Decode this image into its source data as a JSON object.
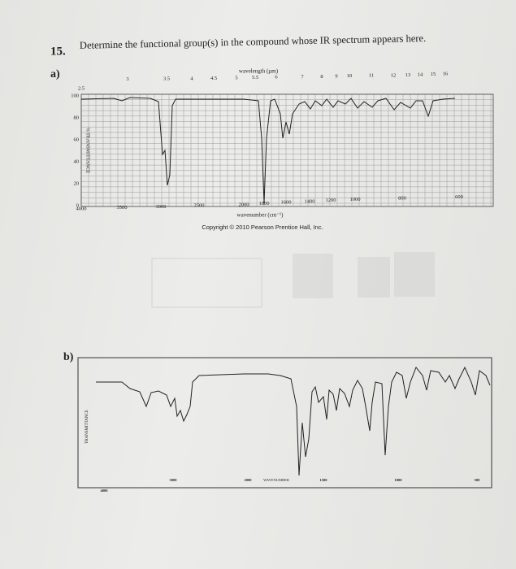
{
  "question": {
    "number": "15.",
    "text": "Determine the functional group(s) in the compound whose IR spectrum appears here."
  },
  "part_a": {
    "label": "a)",
    "wavelength_label": "wavelength (µm)",
    "wavelength_ticks": [
      "2.5",
      "3",
      "3.5",
      "4",
      "4.5",
      "5",
      "5.5",
      "6",
      "7",
      "8",
      "9",
      "10",
      "11",
      "12",
      "13",
      "14",
      "15",
      "16"
    ],
    "y_label": "% TRANSMITTANCE",
    "y_ticks": [
      "100",
      "80",
      "60",
      "40",
      "20",
      "0"
    ],
    "wavenumber_ticks": [
      "4000",
      "3500",
      "3000",
      "2500",
      "2000",
      "1800",
      "1600",
      "1400",
      "1200",
      "1000",
      "800",
      "600"
    ],
    "wavenumber_label": "wavenumber (cm⁻¹)",
    "copyright": "Copyright © 2010 Pearson Prentice Hall, Inc."
  },
  "part_b": {
    "label": "b)",
    "y_label": "TRANSMITTANCE",
    "wavenumber_ticks": [
      "4000",
      "3000",
      "2000",
      "1500",
      "1000",
      "500"
    ],
    "wavenumber_label": "WAVENUMBER"
  }
}
